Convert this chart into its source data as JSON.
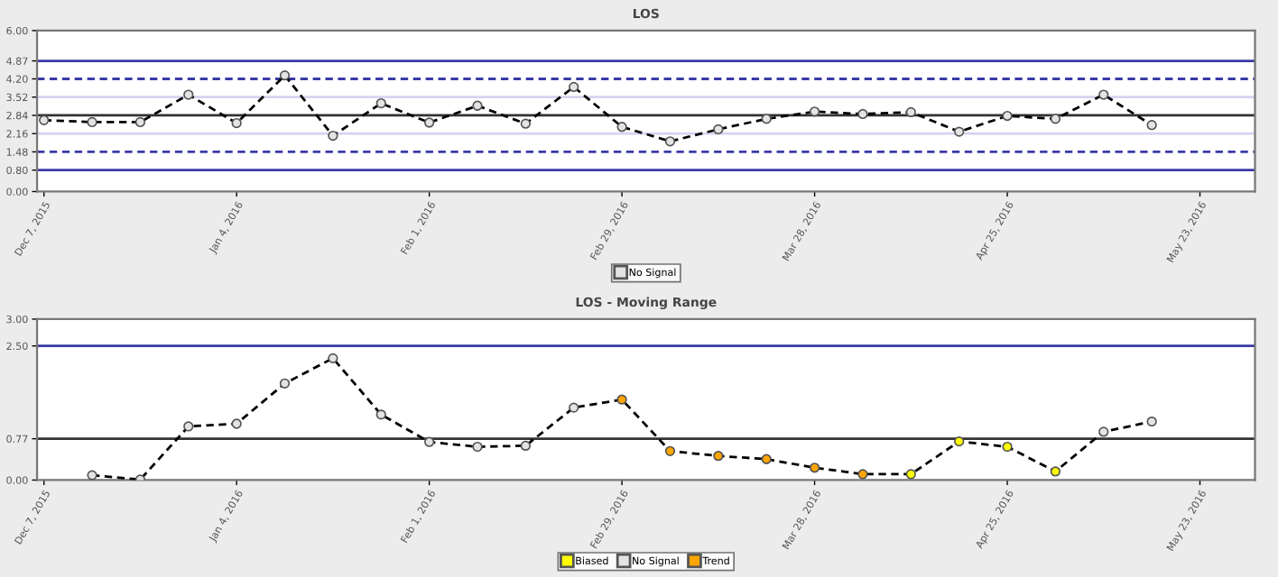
{
  "chart_data": [
    {
      "type": "line",
      "title": "LOS",
      "xlim": [
        "2015-12-06",
        "2016-05-31"
      ],
      "ylim": [
        0,
        6
      ],
      "xticks": [
        {
          "value": "2015-12-07",
          "label": "Dec 7, 2015"
        },
        {
          "value": "2016-01-04",
          "label": "Jan 4, 2016"
        },
        {
          "value": "2016-02-01",
          "label": "Feb 1, 2016"
        },
        {
          "value": "2016-02-29",
          "label": "Feb 29, 2016"
        },
        {
          "value": "2016-03-28",
          "label": "Mar 28, 2016"
        },
        {
          "value": "2016-04-25",
          "label": "Apr 25, 2016"
        },
        {
          "value": "2016-05-23",
          "label": "May 23, 2016"
        }
      ],
      "yticks": [
        {
          "value": 0,
          "label": "0.00"
        },
        {
          "value": 0.8,
          "label": "0.80"
        },
        {
          "value": 1.48,
          "label": "1.48"
        },
        {
          "value": 2.16,
          "label": "2.16"
        },
        {
          "value": 2.84,
          "label": "2.84"
        },
        {
          "value": 3.52,
          "label": "3.52"
        },
        {
          "value": 4.2,
          "label": "4.20"
        },
        {
          "value": 4.87,
          "label": "4.87"
        },
        {
          "value": 6,
          "label": "6.00"
        }
      ],
      "ref_lines": [
        {
          "axis": "y",
          "value": 4.87,
          "color": "#3a3aa8",
          "line_style": "solid"
        },
        {
          "axis": "y",
          "value": 4.2,
          "color": "#3a3aa8",
          "line_style": "dashed"
        },
        {
          "axis": "y",
          "value": 3.52,
          "color": "#d4d4f0",
          "line_style": "solid"
        },
        {
          "axis": "y",
          "value": 2.84,
          "color": "#333333",
          "line_style": "solid"
        },
        {
          "axis": "y",
          "value": 2.16,
          "color": "#d4d4f0",
          "line_style": "solid"
        },
        {
          "axis": "y",
          "value": 1.48,
          "color": "#3a3aa8",
          "line_style": "dashed"
        },
        {
          "axis": "y",
          "value": 0.8,
          "color": "#3a3aa8",
          "line_style": "solid"
        }
      ],
      "legend": "bottom",
      "grid": false,
      "series": [
        {
          "color": "#000000",
          "line_style": "dashed",
          "marker": "none",
          "x": [
            "2015-12-07",
            "2015-12-14",
            "2015-12-21",
            "2015-12-28",
            "2016-01-04",
            "2016-01-11",
            "2016-01-18",
            "2016-01-25",
            "2016-02-01",
            "2016-02-08",
            "2016-02-15",
            "2016-02-22",
            "2016-02-29",
            "2016-03-07",
            "2016-03-14",
            "2016-03-21",
            "2016-03-28",
            "2016-04-04",
            "2016-04-11",
            "2016-04-18",
            "2016-04-25",
            "2016-05-02",
            "2016-05-09",
            "2016-05-16"
          ],
          "values": [
            2.66,
            2.59,
            2.59,
            3.61,
            2.55,
            4.33,
            2.08,
            3.29,
            2.57,
            3.2,
            2.53,
            3.9,
            2.41,
            1.87,
            2.32,
            2.71,
            2.98,
            2.89,
            2.96,
            2.23,
            2.82,
            2.71,
            3.61,
            2.48
          ]
        },
        {
          "type": "scatter",
          "name": "No Signal",
          "color": "#e4e4e4",
          "marker": "circle",
          "x": [
            "2015-12-07",
            "2015-12-14",
            "2015-12-21",
            "2015-12-28",
            "2016-01-04",
            "2016-01-11",
            "2016-01-18",
            "2016-01-25",
            "2016-02-01",
            "2016-02-08",
            "2016-02-15",
            "2016-02-22",
            "2016-02-29",
            "2016-03-07",
            "2016-03-14",
            "2016-03-21",
            "2016-03-28",
            "2016-04-04",
            "2016-04-11",
            "2016-04-18",
            "2016-04-25",
            "2016-05-02",
            "2016-05-09",
            "2016-05-16"
          ],
          "values": [
            2.66,
            2.59,
            2.59,
            3.61,
            2.55,
            4.33,
            2.08,
            3.29,
            2.57,
            3.2,
            2.53,
            3.9,
            2.41,
            1.87,
            2.32,
            2.71,
            2.98,
            2.89,
            2.96,
            2.23,
            2.82,
            2.71,
            3.61,
            2.48
          ]
        }
      ]
    },
    {
      "type": "line",
      "title": "LOS - Moving Range",
      "xlim": [
        "2015-12-06",
        "2016-05-31"
      ],
      "ylim": [
        0,
        3
      ],
      "xticks": [
        {
          "value": "2015-12-07",
          "label": "Dec 7, 2015"
        },
        {
          "value": "2016-01-04",
          "label": "Jan 4, 2016"
        },
        {
          "value": "2016-02-01",
          "label": "Feb 1, 2016"
        },
        {
          "value": "2016-02-29",
          "label": "Feb 29, 2016"
        },
        {
          "value": "2016-03-28",
          "label": "Mar 28, 2016"
        },
        {
          "value": "2016-04-25",
          "label": "Apr 25, 2016"
        },
        {
          "value": "2016-05-23",
          "label": "May 23, 2016"
        }
      ],
      "yticks": [
        {
          "value": 0,
          "label": "0.00"
        },
        {
          "value": 0.77,
          "label": "0.77"
        },
        {
          "value": 2.5,
          "label": "2.50"
        },
        {
          "value": 3,
          "label": "3.00"
        }
      ],
      "ref_lines": [
        {
          "axis": "y",
          "value": 2.5,
          "color": "#3a3aa8",
          "line_style": "solid"
        },
        {
          "axis": "y",
          "value": 0.77,
          "color": "#333333",
          "line_style": "solid"
        }
      ],
      "legend": "bottom",
      "grid": false,
      "series": [
        {
          "color": "#000000",
          "line_style": "dashed",
          "marker": "none",
          "x": [
            "2015-12-14",
            "2015-12-21",
            "2015-12-28",
            "2016-01-04",
            "2016-01-11",
            "2016-01-18",
            "2016-01-25",
            "2016-02-01",
            "2016-02-08",
            "2016-02-15",
            "2016-02-22",
            "2016-02-29",
            "2016-03-07",
            "2016-03-14",
            "2016-03-21",
            "2016-03-28",
            "2016-04-04",
            "2016-04-11",
            "2016-04-18",
            "2016-04-25",
            "2016-05-02",
            "2016-05-09",
            "2016-05-16"
          ],
          "values": [
            0.09,
            0.01,
            1.0,
            1.05,
            1.8,
            2.27,
            1.22,
            0.71,
            0.62,
            0.64,
            1.35,
            1.5,
            0.54,
            0.45,
            0.39,
            0.23,
            0.11,
            0.11,
            0.72,
            0.62,
            0.16,
            0.9,
            1.09
          ]
        },
        {
          "type": "scatter",
          "name": "Biased",
          "color": "#ffff00",
          "marker": "circle",
          "x": [
            "2016-04-11",
            "2016-04-18",
            "2016-04-25",
            "2016-05-02"
          ],
          "values": [
            0.11,
            0.72,
            0.62,
            0.16
          ]
        },
        {
          "type": "scatter",
          "name": "No Signal",
          "color": "#e4e4e4",
          "marker": "circle",
          "x": [
            "2015-12-14",
            "2015-12-21",
            "2015-12-28",
            "2016-01-04",
            "2016-01-11",
            "2016-01-18",
            "2016-01-25",
            "2016-02-01",
            "2016-02-08",
            "2016-02-15",
            "2016-02-22",
            "2016-05-09",
            "2016-05-16"
          ],
          "values": [
            0.09,
            0.01,
            1.0,
            1.05,
            1.8,
            2.27,
            1.22,
            0.71,
            0.62,
            0.64,
            1.35,
            0.9,
            1.09
          ]
        },
        {
          "type": "scatter",
          "name": "Trend",
          "color": "#ffa500",
          "marker": "circle",
          "x": [
            "2016-02-29",
            "2016-03-07",
            "2016-03-14",
            "2016-03-21",
            "2016-03-28",
            "2016-04-04"
          ],
          "values": [
            1.5,
            0.54,
            0.45,
            0.39,
            0.23,
            0.11
          ]
        }
      ]
    }
  ]
}
